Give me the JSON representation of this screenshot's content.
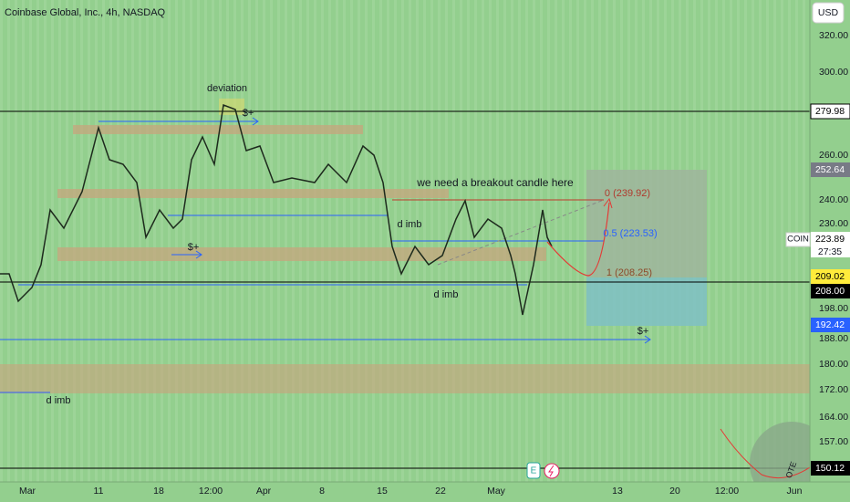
{
  "header": {
    "title": "Coinbase Global, Inc., 4h, NASDAQ",
    "currency": "USD"
  },
  "price_axis": [
    "320.00",
    "300.00",
    "260.00",
    "240.00",
    "230.00",
    "198.00",
    "188.00",
    "180.00",
    "172.00",
    "164.00",
    "157.00"
  ],
  "price_badges": {
    "b279": "279.98",
    "b252": "252.64",
    "last": "223.89",
    "symbol": "COIN",
    "countdown": "27:35",
    "b209": "209.02",
    "b208": "208.00",
    "b192": "192.42",
    "b150": "150.12"
  },
  "time_axis": [
    "Mar",
    "11",
    "18",
    "12:00",
    "Apr",
    "8",
    "15",
    "22",
    "May",
    "13",
    "20",
    "12:00",
    "Jun"
  ],
  "annotations": {
    "deviation": "deviation",
    "liq1": "$+",
    "liq2": "$+",
    "liq3": "$+",
    "imb1": "d imb",
    "imb2": "d imb",
    "imb3": "d imb",
    "breakout": "we need a breakout candle here",
    "ote": "OTE"
  },
  "fib": {
    "f0": "0 (239.92)",
    "f05": "0.5 (223.53)",
    "f1": "1 (208.25)"
  },
  "icons": {
    "earnings": "E"
  }
}
